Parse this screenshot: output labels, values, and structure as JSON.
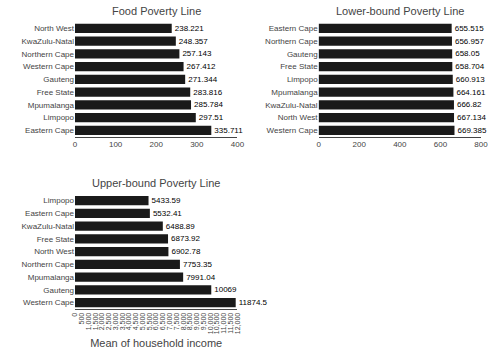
{
  "chart_data": [
    {
      "type": "bar",
      "orientation": "horizontal",
      "title": "Food Poverty Line",
      "categories": [
        "North West",
        "KwaZulu-Natal",
        "Northern Cape",
        "Western Cape",
        "Gauteng",
        "Free State",
        "Mpumalanga",
        "Limpopo",
        "Eastern Cape"
      ],
      "values": [
        238.221,
        248.357,
        257.143,
        267.412,
        271.344,
        283.816,
        285.784,
        297.51,
        335.711
      ],
      "color": "#1a1a1a",
      "xlim": [
        0,
        400
      ],
      "xticks": [
        0,
        100,
        200,
        300,
        400
      ],
      "grid": false,
      "data_labels": true
    },
    {
      "type": "bar",
      "orientation": "horizontal",
      "title": "Lower-bound Poverty Line",
      "categories": [
        "Eastern Cape",
        "Northern Cape",
        "Gauteng",
        "Free State",
        "Limpopo",
        "Mpumalanga",
        "KwaZulu-Natal",
        "North West",
        "Western Cape"
      ],
      "values": [
        655.515,
        656.957,
        658.05,
        658.704,
        660.913,
        664.161,
        666.82,
        667.134,
        669.385
      ],
      "color": "#1a1a1a",
      "xlim": [
        0,
        800
      ],
      "xticks": [
        0,
        200,
        400,
        600,
        800
      ],
      "grid": false,
      "data_labels": true
    },
    {
      "type": "bar",
      "orientation": "horizontal",
      "title": "Upper-bound Poverty Line",
      "xlabel": "Mean of household income",
      "categories": [
        "Limpopo",
        "Eastern Cape",
        "KwaZulu-Natal",
        "Free State",
        "North West",
        "Northern Cape",
        "Mpumalanga",
        "Gauteng",
        "Western Cape"
      ],
      "values": [
        5433.59,
        5532.41,
        6488.89,
        6873.92,
        6902.78,
        7753.35,
        7991.04,
        10069,
        11874.5
      ],
      "color": "#1a1a1a",
      "xlim": [
        0,
        12000
      ],
      "xticks": [
        0,
        500,
        {
          "value": 1000,
          "label": "1,000"
        },
        {
          "value": 1500,
          "label": "1,500"
        },
        {
          "value": 2000,
          "label": "2,000"
        },
        {
          "value": 2500,
          "label": "2,500"
        },
        {
          "value": 3000,
          "label": "3,000"
        },
        {
          "value": 3500,
          "label": "3,500"
        },
        {
          "value": 4000,
          "label": "4,000"
        },
        {
          "value": 4500,
          "label": "4,500"
        },
        {
          "value": 5000,
          "label": "5,000"
        },
        {
          "value": 5500,
          "label": "5,500"
        },
        {
          "value": 6000,
          "label": "6,000"
        },
        {
          "value": 6500,
          "label": "6,500"
        },
        {
          "value": 7000,
          "label": "7,000"
        },
        {
          "value": 7500,
          "label": "7,500"
        },
        {
          "value": 8000,
          "label": "8,000"
        },
        {
          "value": 8500,
          "label": "8,500"
        },
        {
          "value": 9000,
          "label": "9,000"
        },
        {
          "value": 9500,
          "label": "9,500"
        },
        {
          "value": 10000,
          "label": "10,000"
        },
        {
          "value": 10500,
          "label": "10,500"
        },
        {
          "value": 11000,
          "label": "11,000"
        },
        {
          "value": 11500,
          "label": "11,500"
        },
        {
          "value": 12000,
          "label": "12,000"
        }
      ],
      "grid": false,
      "data_labels": true
    }
  ]
}
